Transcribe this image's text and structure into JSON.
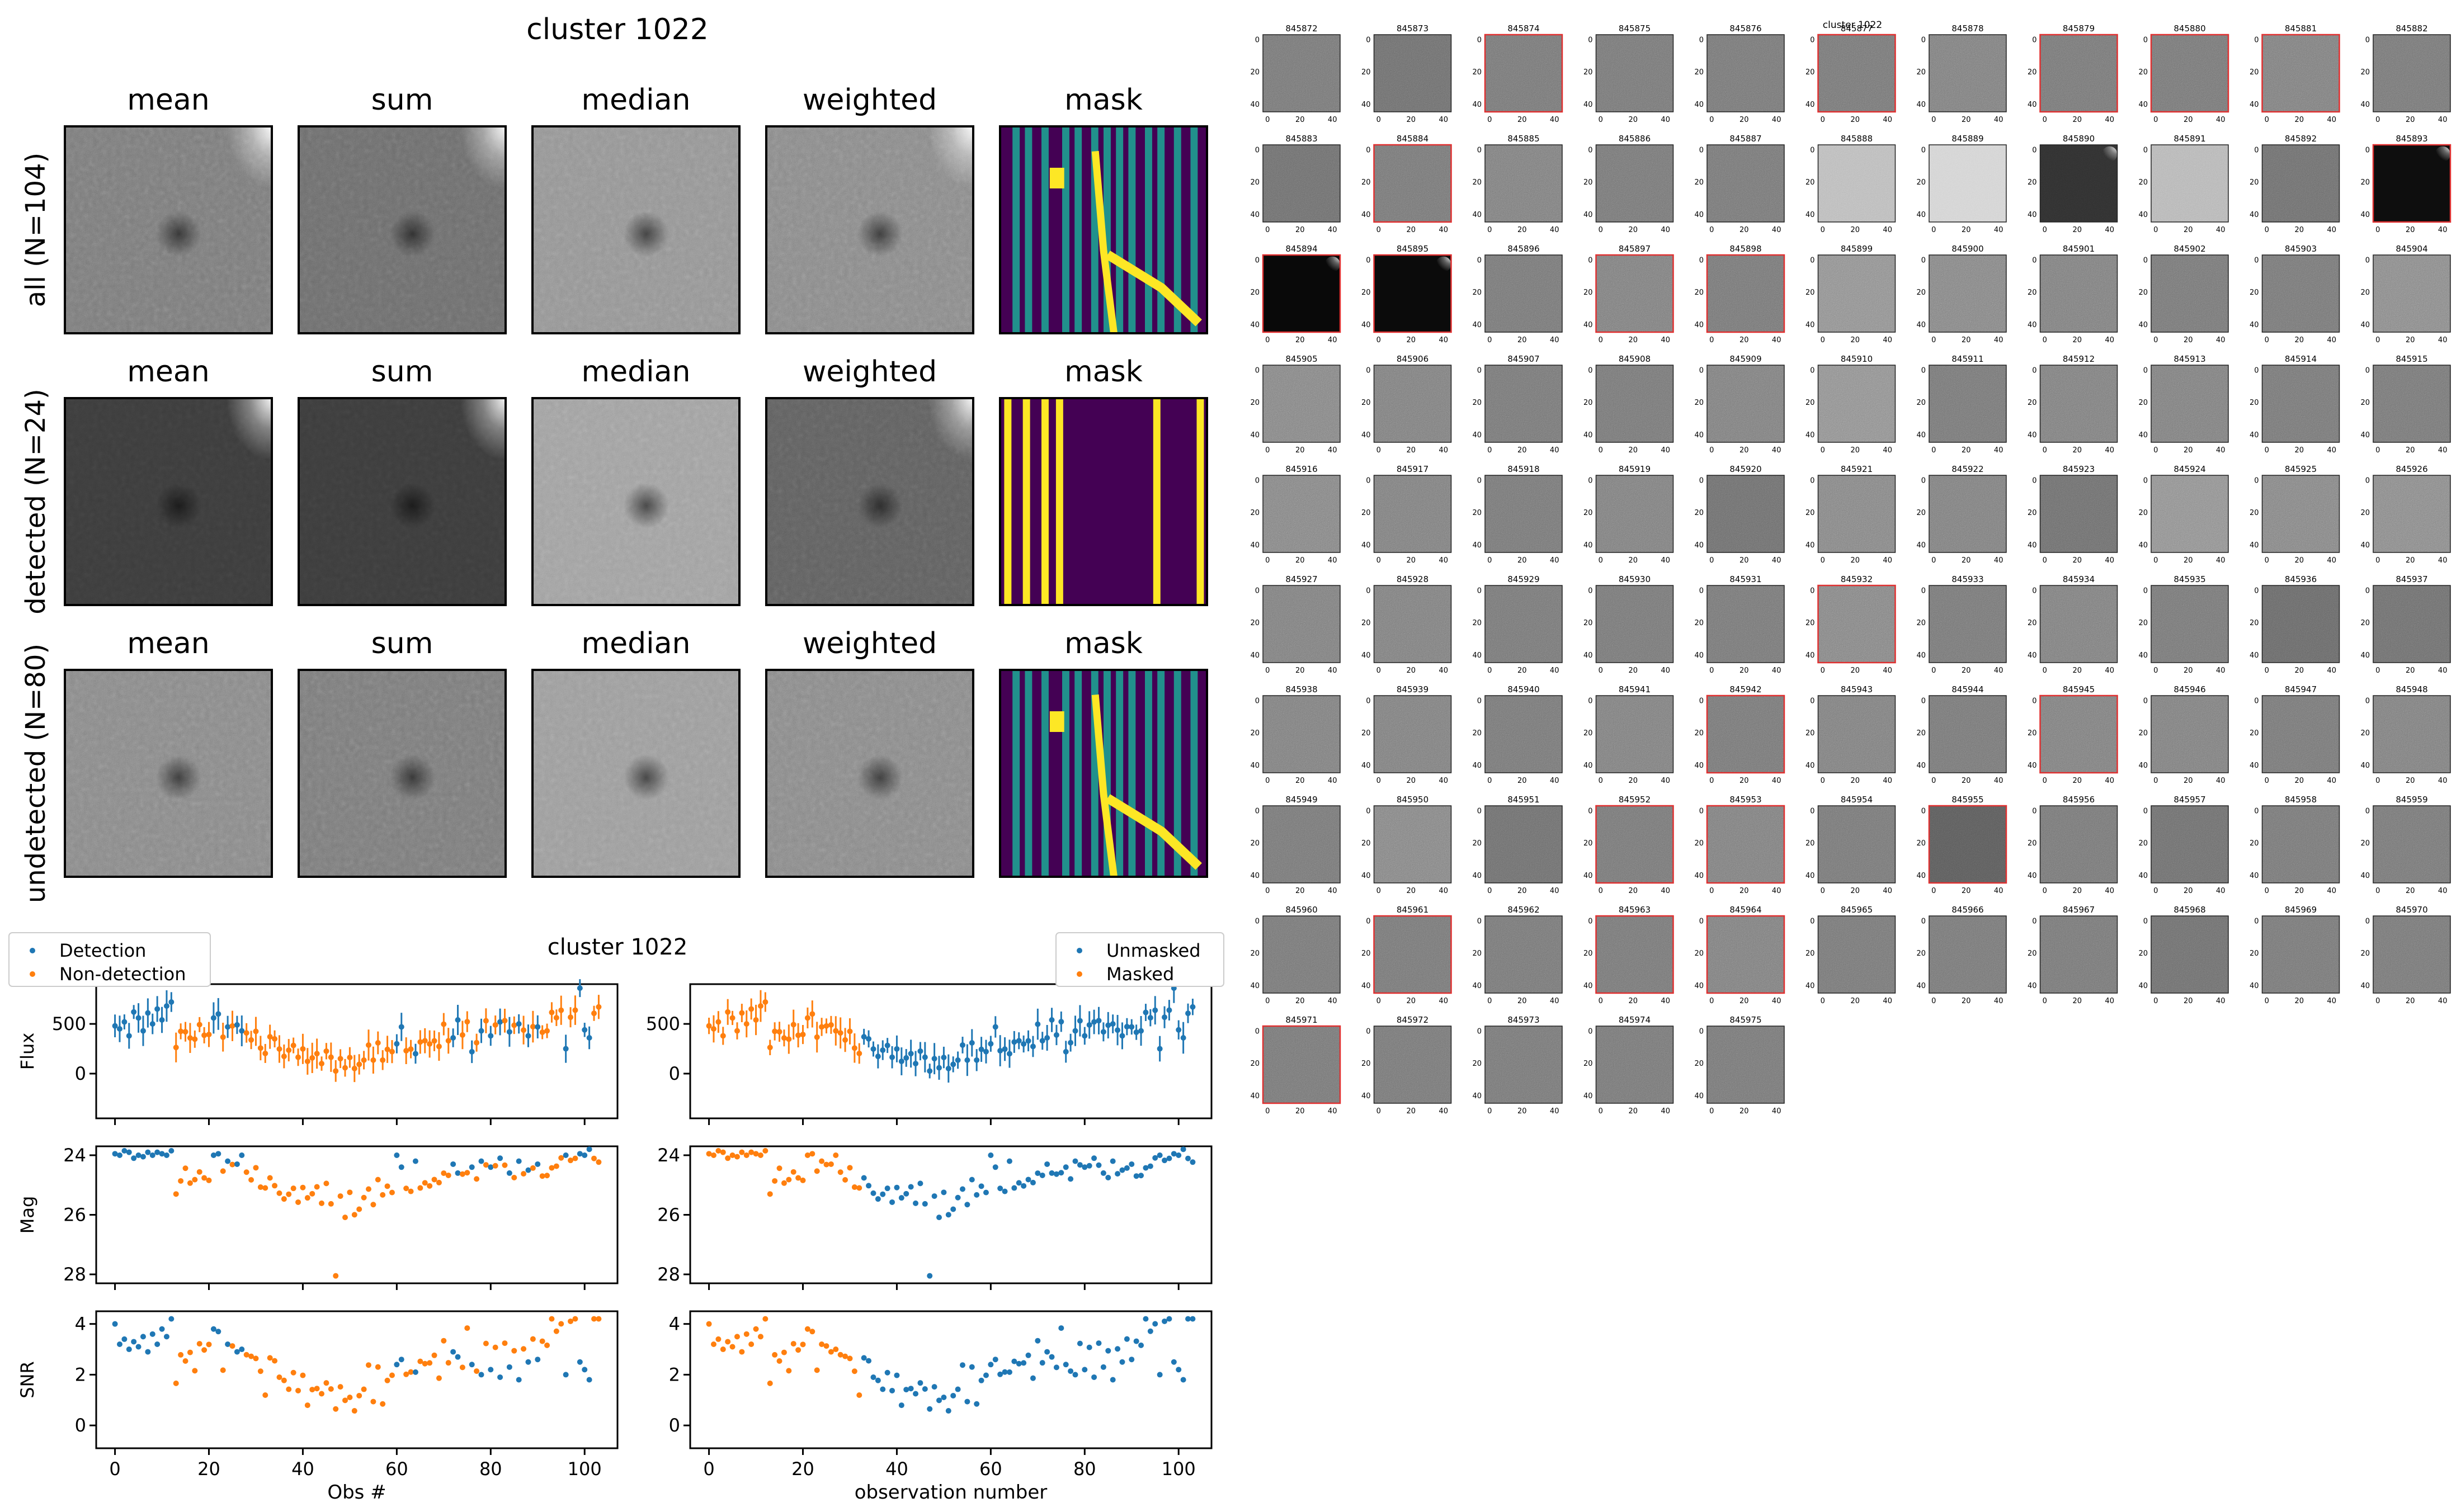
{
  "mosaic": {
    "title": "cluster 1022",
    "columns": [
      "mean",
      "sum",
      "median",
      "weighted",
      "mask"
    ],
    "rows": [
      {
        "label": "all (N=104)",
        "brightness": [
          0.45,
          0.4,
          0.55,
          0.5
        ],
        "contrast": [
          0.55,
          0.55,
          0.55,
          0.6
        ],
        "dark_spot": true,
        "glare": true
      },
      {
        "label": "detected (N=24)",
        "brightness": [
          0.22,
          0.22,
          0.6,
          0.35
        ],
        "contrast": [
          0.45,
          0.45,
          0.55,
          0.6
        ],
        "dark_spot": true,
        "glare": true
      },
      {
        "label": "undetected (N=80)",
        "brightness": [
          0.5,
          0.45,
          0.58,
          0.5
        ],
        "contrast": [
          0.55,
          0.55,
          0.55,
          0.6
        ],
        "dark_spot": true,
        "glare": false
      }
    ],
    "colors": {
      "mask_bg": "#440154",
      "mask_mid": "#21918c",
      "mask_hi": "#fde725"
    }
  },
  "lightcurve": {
    "title": "cluster 1022",
    "legend_left": [
      "Detection",
      "Non-detection"
    ],
    "legend_right": [
      "Unmasked",
      "Masked"
    ],
    "ylabels": [
      "Flux",
      "Mag",
      "SNR"
    ],
    "xlabel_left": "Obs #",
    "xlabel_right": "observation number",
    "colors": {
      "blue": "#1f77b4",
      "orange": "#ff7f0e"
    },
    "ticks": {
      "flux": [
        "500",
        "0"
      ],
      "mag": [
        "24",
        "26",
        "28"
      ],
      "snr": [
        "4",
        "2",
        "0"
      ],
      "x": [
        "0",
        "20",
        "40",
        "60",
        "80",
        "100"
      ]
    }
  },
  "chart_data": [
    {
      "type": "scatter",
      "title": "cluster 1022",
      "xlabel": "Obs #",
      "ylabel": "Flux",
      "xlim": [
        -4,
        107
      ],
      "ylim": [
        -450,
        900
      ],
      "series": [
        {
          "name": "Detection",
          "x": [
            0,
            1,
            2,
            3,
            4,
            5,
            6,
            7,
            8,
            9,
            10,
            11,
            12,
            21,
            22,
            24,
            26,
            27,
            60,
            61,
            64,
            72,
            73,
            76,
            78,
            80,
            82,
            84,
            86,
            88,
            90,
            96,
            99,
            100,
            101
          ],
          "y": [
            480,
            450,
            520,
            380,
            620,
            560,
            430,
            610,
            500,
            650,
            540,
            680,
            720,
            560,
            600,
            470,
            490,
            430,
            300,
            470,
            200,
            360,
            540,
            220,
            430,
            380,
            520,
            420,
            500,
            380,
            470,
            250,
            860,
            440,
            360
          ]
        }
      ]
    },
    {
      "type": "scatter",
      "title": "cluster 1022",
      "xlabel": "Obs #",
      "ylabel": "Mag",
      "xlim": [
        -4,
        107
      ],
      "ylim": [
        28.3,
        23.7
      ],
      "series": [
        {
          "name": "Detection",
          "x": [
            0,
            1,
            2,
            3,
            4,
            5,
            6,
            7,
            8,
            9,
            10,
            11,
            12,
            21,
            22,
            24,
            26,
            27,
            60,
            61,
            64,
            72,
            73,
            76,
            78,
            80,
            82,
            84,
            86,
            88,
            90,
            96,
            99,
            100,
            101
          ],
          "y": [
            23.95,
            24.0,
            23.85,
            23.9,
            24.1,
            24.0,
            24.05,
            23.9,
            24.0,
            23.9,
            23.95,
            24.0,
            23.85,
            24.0,
            23.95,
            24.2,
            24.3,
            24.0,
            24.0,
            24.4,
            24.2,
            24.3,
            24.6,
            24.4,
            24.2,
            24.4,
            24.1,
            24.6,
            24.2,
            24.5,
            24.3,
            24.0,
            23.95,
            24.0,
            23.8
          ]
        }
      ]
    },
    {
      "type": "scatter",
      "title": "cluster 1022",
      "xlabel": "Obs #",
      "ylabel": "SNR",
      "xlim": [
        -4,
        107
      ],
      "ylim": [
        -0.9,
        4.5
      ],
      "series": [
        {
          "name": "Detection",
          "x": [
            0,
            1,
            2,
            3,
            4,
            5,
            6,
            7,
            8,
            9,
            10,
            11,
            12,
            21,
            22,
            24,
            26,
            27,
            60,
            61,
            64,
            72,
            73,
            76,
            78,
            80,
            82,
            84,
            86,
            88,
            90,
            96,
            99,
            100,
            101
          ],
          "y": [
            4.0,
            3.2,
            3.4,
            3.0,
            3.3,
            3.1,
            3.5,
            2.9,
            3.6,
            3.2,
            3.8,
            3.5,
            4.2,
            3.8,
            3.7,
            3.2,
            2.9,
            3.0,
            2.4,
            2.6,
            2.1,
            2.9,
            2.7,
            2.4,
            2.0,
            2.2,
            1.9,
            2.3,
            1.8,
            2.5,
            2.6,
            2.0,
            2.5,
            2.2,
            1.8
          ]
        }
      ]
    }
  ],
  "grid": {
    "caption": "cluster 1022",
    "ticks_x": [
      "0",
      "20",
      "40"
    ],
    "ticks_y": [
      "0",
      "20",
      "40"
    ],
    "items": [
      {
        "id": "845872",
        "b": 0.45,
        "red": false
      },
      {
        "id": "845873",
        "b": 0.42,
        "red": false
      },
      {
        "id": "845874",
        "b": 0.45,
        "red": true
      },
      {
        "id": "845875",
        "b": 0.45,
        "red": false
      },
      {
        "id": "845876",
        "b": 0.45,
        "red": false
      },
      {
        "id": "845877",
        "b": 0.45,
        "red": true
      },
      {
        "id": "845878",
        "b": 0.48,
        "red": false
      },
      {
        "id": "845879",
        "b": 0.45,
        "red": true
      },
      {
        "id": "845880",
        "b": 0.45,
        "red": true
      },
      {
        "id": "845881",
        "b": 0.48,
        "red": true
      },
      {
        "id": "845882",
        "b": 0.45,
        "red": false
      },
      {
        "id": "845883",
        "b": 0.42,
        "red": false
      },
      {
        "id": "845884",
        "b": 0.45,
        "red": true
      },
      {
        "id": "845885",
        "b": 0.48,
        "red": false
      },
      {
        "id": "845886",
        "b": 0.45,
        "red": false
      },
      {
        "id": "845887",
        "b": 0.45,
        "red": false
      },
      {
        "id": "845888",
        "b": 0.72,
        "red": false
      },
      {
        "id": "845889",
        "b": 0.82,
        "red": false
      },
      {
        "id": "845890",
        "b": 0.18,
        "red": false,
        "glare": true
      },
      {
        "id": "845891",
        "b": 0.7,
        "red": false
      },
      {
        "id": "845892",
        "b": 0.42,
        "red": false
      },
      {
        "id": "845893",
        "b": 0.05,
        "red": true,
        "glare": true
      },
      {
        "id": "845894",
        "b": 0.03,
        "red": true,
        "glare": true
      },
      {
        "id": "845895",
        "b": 0.04,
        "red": true,
        "glare": true
      },
      {
        "id": "845896",
        "b": 0.45,
        "red": false
      },
      {
        "id": "845897",
        "b": 0.48,
        "red": true
      },
      {
        "id": "845898",
        "b": 0.45,
        "red": true
      },
      {
        "id": "845899",
        "b": 0.55,
        "red": false
      },
      {
        "id": "845900",
        "b": 0.5,
        "red": false
      },
      {
        "id": "845901",
        "b": 0.48,
        "red": false
      },
      {
        "id": "845902",
        "b": 0.45,
        "red": false
      },
      {
        "id": "845903",
        "b": 0.45,
        "red": false
      },
      {
        "id": "845904",
        "b": 0.52,
        "red": false
      },
      {
        "id": "845905",
        "b": 0.5,
        "red": false
      },
      {
        "id": "845906",
        "b": 0.48,
        "red": false
      },
      {
        "id": "845907",
        "b": 0.45,
        "red": false
      },
      {
        "id": "845908",
        "b": 0.45,
        "red": false
      },
      {
        "id": "845909",
        "b": 0.48,
        "red": false
      },
      {
        "id": "845910",
        "b": 0.55,
        "red": false
      },
      {
        "id": "845911",
        "b": 0.45,
        "red": false
      },
      {
        "id": "845912",
        "b": 0.48,
        "red": false
      },
      {
        "id": "845913",
        "b": 0.48,
        "red": false
      },
      {
        "id": "845914",
        "b": 0.45,
        "red": false
      },
      {
        "id": "845915",
        "b": 0.45,
        "red": false
      },
      {
        "id": "845916",
        "b": 0.5,
        "red": false
      },
      {
        "id": "845917",
        "b": 0.48,
        "red": false
      },
      {
        "id": "845918",
        "b": 0.45,
        "red": false
      },
      {
        "id": "845919",
        "b": 0.48,
        "red": false
      },
      {
        "id": "845920",
        "b": 0.42,
        "red": false
      },
      {
        "id": "845921",
        "b": 0.5,
        "red": false
      },
      {
        "id": "845922",
        "b": 0.48,
        "red": false
      },
      {
        "id": "845923",
        "b": 0.42,
        "red": false
      },
      {
        "id": "845924",
        "b": 0.55,
        "red": false
      },
      {
        "id": "845925",
        "b": 0.5,
        "red": false
      },
      {
        "id": "845926",
        "b": 0.52,
        "red": false
      },
      {
        "id": "845927",
        "b": 0.48,
        "red": false
      },
      {
        "id": "845928",
        "b": 0.48,
        "red": false
      },
      {
        "id": "845929",
        "b": 0.45,
        "red": false
      },
      {
        "id": "845930",
        "b": 0.45,
        "red": false
      },
      {
        "id": "845931",
        "b": 0.45,
        "red": false
      },
      {
        "id": "845932",
        "b": 0.5,
        "red": true
      },
      {
        "id": "845933",
        "b": 0.45,
        "red": false
      },
      {
        "id": "845934",
        "b": 0.48,
        "red": false
      },
      {
        "id": "845935",
        "b": 0.45,
        "red": false
      },
      {
        "id": "845936",
        "b": 0.4,
        "red": false
      },
      {
        "id": "845937",
        "b": 0.42,
        "red": false
      },
      {
        "id": "845938",
        "b": 0.48,
        "red": false
      },
      {
        "id": "845939",
        "b": 0.48,
        "red": false
      },
      {
        "id": "845940",
        "b": 0.45,
        "red": false
      },
      {
        "id": "845941",
        "b": 0.48,
        "red": false
      },
      {
        "id": "845942",
        "b": 0.45,
        "red": true
      },
      {
        "id": "845943",
        "b": 0.48,
        "red": false
      },
      {
        "id": "845944",
        "b": 0.45,
        "red": false
      },
      {
        "id": "845945",
        "b": 0.48,
        "red": true
      },
      {
        "id": "845946",
        "b": 0.48,
        "red": false
      },
      {
        "id": "845947",
        "b": 0.45,
        "red": false
      },
      {
        "id": "845948",
        "b": 0.48,
        "red": false
      },
      {
        "id": "845949",
        "b": 0.45,
        "red": false
      },
      {
        "id": "845950",
        "b": 0.5,
        "red": false
      },
      {
        "id": "845951",
        "b": 0.42,
        "red": false
      },
      {
        "id": "845952",
        "b": 0.45,
        "red": true
      },
      {
        "id": "845953",
        "b": 0.48,
        "red": true
      },
      {
        "id": "845954",
        "b": 0.45,
        "red": false
      },
      {
        "id": "845955",
        "b": 0.35,
        "red": true
      },
      {
        "id": "845956",
        "b": 0.45,
        "red": false
      },
      {
        "id": "845957",
        "b": 0.42,
        "red": false
      },
      {
        "id": "845958",
        "b": 0.45,
        "red": false
      },
      {
        "id": "845959",
        "b": 0.45,
        "red": false
      },
      {
        "id": "845960",
        "b": 0.45,
        "red": false
      },
      {
        "id": "845961",
        "b": 0.45,
        "red": true
      },
      {
        "id": "845962",
        "b": 0.45,
        "red": false
      },
      {
        "id": "845963",
        "b": 0.45,
        "red": true
      },
      {
        "id": "845964",
        "b": 0.48,
        "red": true
      },
      {
        "id": "845965",
        "b": 0.45,
        "red": false
      },
      {
        "id": "845966",
        "b": 0.45,
        "red": false
      },
      {
        "id": "845967",
        "b": 0.45,
        "red": false
      },
      {
        "id": "845968",
        "b": 0.42,
        "red": false
      },
      {
        "id": "845969",
        "b": 0.45,
        "red": false
      },
      {
        "id": "845970",
        "b": 0.45,
        "red": false
      },
      {
        "id": "845971",
        "b": 0.45,
        "red": true
      },
      {
        "id": "845972",
        "b": 0.45,
        "red": false
      },
      {
        "id": "845973",
        "b": 0.45,
        "red": false
      },
      {
        "id": "845974",
        "b": 0.45,
        "red": false
      },
      {
        "id": "845975",
        "b": 0.45,
        "red": false
      }
    ]
  }
}
